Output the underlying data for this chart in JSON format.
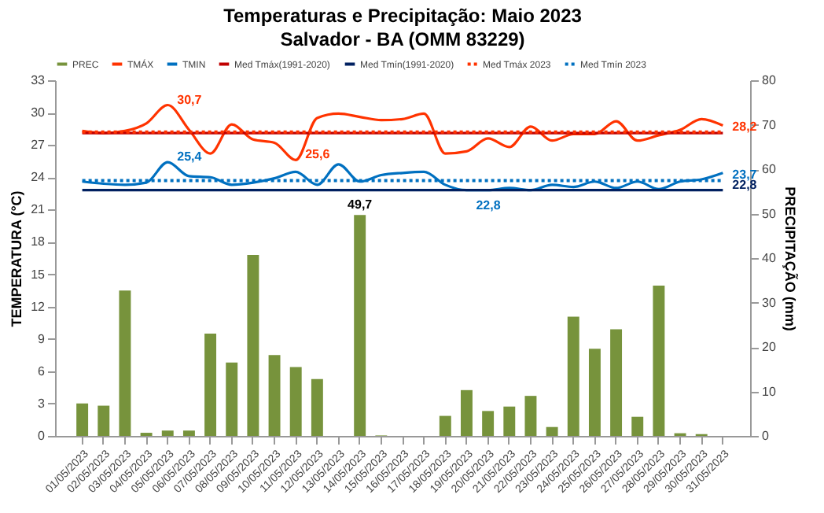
{
  "chart_data": {
    "type": "bar",
    "title": "Temperaturas e Precipitação: Maio 2023",
    "subtitle": "Salvador - BA (OMM 83229)",
    "ylabel": "TEMPERATURA  (°C)",
    "y2label": "PRECIPITAÇÃO  (mm)",
    "categories": [
      "01/05/2023",
      "02/05/2023",
      "03/05/2023",
      "04/05/2023",
      "05/05/2023",
      "06/05/2023",
      "07/05/2023",
      "08/05/2023",
      "09/05/2023",
      "10/05/2023",
      "11/05/2023",
      "12/05/2023",
      "13/05/2023",
      "14/05/2023",
      "15/05/2023",
      "16/05/2023",
      "17/05/2023",
      "18/05/2023",
      "19/05/2023",
      "20/05/2023",
      "21/05/2023",
      "22/05/2023",
      "23/05/2023",
      "24/05/2023",
      "25/05/2023",
      "26/05/2023",
      "27/05/2023",
      "28/05/2023",
      "29/05/2023",
      "30/05/2023",
      "31/05/2023"
    ],
    "ylim": [
      0,
      33
    ],
    "yticks": [
      0,
      3,
      6,
      9,
      12,
      15,
      18,
      21,
      24,
      27,
      30,
      33
    ],
    "y2lim": [
      0,
      80
    ],
    "y2ticks": [
      0,
      10,
      20,
      30,
      40,
      50,
      60,
      70,
      80
    ],
    "legend": "top",
    "series": [
      {
        "name": "PREC",
        "axis": "y2",
        "color": "#77933c",
        "values": [
          7.3,
          6.8,
          32.7,
          0.7,
          1.2,
          1.2,
          23.0,
          16.5,
          40.7,
          18.2,
          15.5,
          12.8,
          0,
          49.7,
          0.1,
          0,
          0,
          4.5,
          10.3,
          5.6,
          6.6,
          9.0,
          2.0,
          26.8,
          19.6,
          24.0,
          4.3,
          33.8,
          0.6,
          0.4,
          0
        ],
        "value_labels": [
          null,
          null,
          null,
          null,
          null,
          null,
          null,
          null,
          null,
          null,
          null,
          null,
          null,
          "49,7",
          null,
          null,
          null,
          null,
          null,
          null,
          null,
          null,
          null,
          null,
          null,
          null,
          null,
          null,
          null,
          null,
          null
        ]
      },
      {
        "name": "TMÁX",
        "type": "line",
        "color": "#ff3300",
        "values": [
          28.3,
          28.1,
          28.3,
          29.0,
          30.7,
          28.4,
          26.2,
          28.9,
          27.5,
          27.2,
          25.6,
          29.5,
          29.9,
          29.6,
          29.3,
          29.4,
          29.9,
          26.2,
          26.4,
          27.6,
          26.8,
          28.7,
          27.4,
          28.0,
          28.0,
          29.2,
          27.4,
          27.9,
          28.4,
          29.4,
          28.8
        ],
        "value_labels": [
          null,
          null,
          null,
          null,
          "30,7",
          null,
          null,
          null,
          null,
          null,
          "25,6",
          null,
          null,
          null,
          null,
          null,
          null,
          null,
          null,
          null,
          null,
          null,
          null,
          null,
          null,
          null,
          null,
          null,
          null,
          null,
          null
        ]
      },
      {
        "name": "TMIN",
        "type": "line",
        "color": "#0070c0",
        "values": [
          23.6,
          23.4,
          23.3,
          23.5,
          25.4,
          24.1,
          24.0,
          23.3,
          23.5,
          23.9,
          24.5,
          23.3,
          25.2,
          23.6,
          24.2,
          24.4,
          24.5,
          23.3,
          22.8,
          22.8,
          23.0,
          22.8,
          23.3,
          23.1,
          23.6,
          23.0,
          23.6,
          22.9,
          23.6,
          23.8,
          24.4
        ],
        "value_labels": [
          null,
          null,
          null,
          null,
          "25,4",
          null,
          null,
          null,
          null,
          null,
          null,
          null,
          null,
          null,
          null,
          null,
          null,
          null,
          "22,8",
          null,
          null,
          null,
          null,
          null,
          null,
          null,
          null,
          null,
          null,
          null,
          null
        ]
      },
      {
        "name": "Med Tmáx(1991-2020)",
        "type": "line",
        "color": "#c00000",
        "values": [
          28.1,
          28.1,
          28.1,
          28.1,
          28.1,
          28.1,
          28.1,
          28.1,
          28.1,
          28.1,
          28.1,
          28.1,
          28.1,
          28.1,
          28.1,
          28.1,
          28.1,
          28.1,
          28.1,
          28.1,
          28.1,
          28.1,
          28.1,
          28.1,
          28.1,
          28.1,
          28.1,
          28.1,
          28.1,
          28.1,
          28.1
        ]
      },
      {
        "name": "Med Tmín(1991-2020)",
        "type": "line",
        "color": "#002060",
        "values": [
          22.8,
          22.8,
          22.8,
          22.8,
          22.8,
          22.8,
          22.8,
          22.8,
          22.8,
          22.8,
          22.8,
          22.8,
          22.8,
          22.8,
          22.8,
          22.8,
          22.8,
          22.8,
          22.8,
          22.8,
          22.8,
          22.8,
          22.8,
          22.8,
          22.8,
          22.8,
          22.8,
          22.8,
          22.8,
          22.8,
          22.8
        ],
        "value_labels": [
          null,
          null,
          null,
          null,
          null,
          null,
          null,
          null,
          null,
          null,
          null,
          null,
          null,
          null,
          null,
          null,
          null,
          null,
          null,
          null,
          null,
          null,
          null,
          null,
          null,
          null,
          null,
          null,
          null,
          null,
          "22,8"
        ]
      },
      {
        "name": "Med Tmáx 2023",
        "type": "line",
        "line_style": "dotted",
        "color": "#ff3300",
        "values": [
          28.2,
          28.2,
          28.2,
          28.2,
          28.2,
          28.2,
          28.2,
          28.2,
          28.2,
          28.2,
          28.2,
          28.2,
          28.2,
          28.2,
          28.2,
          28.2,
          28.2,
          28.2,
          28.2,
          28.2,
          28.2,
          28.2,
          28.2,
          28.2,
          28.2,
          28.2,
          28.2,
          28.2,
          28.2,
          28.2,
          28.2
        ],
        "value_labels": [
          null,
          null,
          null,
          null,
          null,
          null,
          null,
          null,
          null,
          null,
          null,
          null,
          null,
          null,
          null,
          null,
          null,
          null,
          null,
          null,
          null,
          null,
          null,
          null,
          null,
          null,
          null,
          null,
          null,
          null,
          "28,2"
        ]
      },
      {
        "name": "Med Tmín 2023",
        "type": "line",
        "line_style": "dotted",
        "color": "#0070c0",
        "values": [
          23.7,
          23.7,
          23.7,
          23.7,
          23.7,
          23.7,
          23.7,
          23.7,
          23.7,
          23.7,
          23.7,
          23.7,
          23.7,
          23.7,
          23.7,
          23.7,
          23.7,
          23.7,
          23.7,
          23.7,
          23.7,
          23.7,
          23.7,
          23.7,
          23.7,
          23.7,
          23.7,
          23.7,
          23.7,
          23.7,
          23.7
        ],
        "value_labels": [
          null,
          null,
          null,
          null,
          null,
          null,
          null,
          null,
          null,
          null,
          null,
          null,
          null,
          null,
          null,
          null,
          null,
          null,
          null,
          null,
          null,
          null,
          null,
          null,
          null,
          null,
          null,
          null,
          null,
          null,
          "23,7"
        ]
      }
    ]
  }
}
